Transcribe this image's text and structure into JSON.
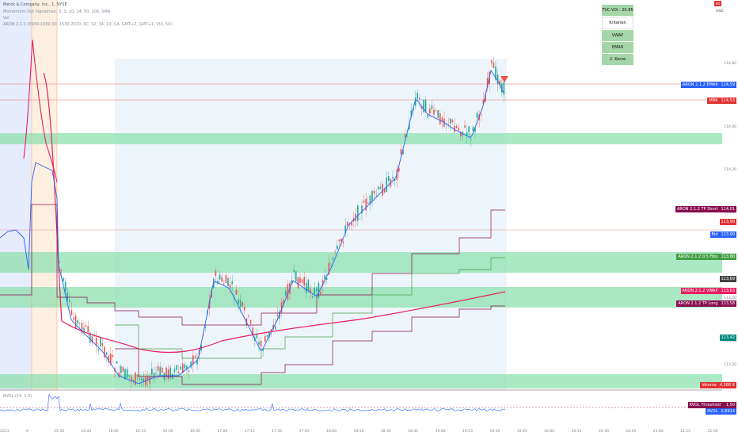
{
  "header": {
    "symbol_line": "Merck & Company, Inc., 1, NYSE",
    "line2": "Momentum Dot Signalman, 3, 3, 10, 14, 50, 100, SMA",
    "line3": "Vol",
    "line4": "ARON 2.1.1 (0930-1000 30, 1530-2020, 0C, 12, 14, 10, CA, GMT+2, GMT+1, VIX, 50)",
    "currency": "USD",
    "alert_label": "Alt"
  },
  "criteria_table": {
    "rows": [
      {
        "label": "TVC:VIX : 20.85",
        "color": "#a5d6a7"
      },
      {
        "label": "Kriterien",
        "color": "#ffffff"
      },
      {
        "label": "VWAP",
        "color": "#a5d6a7"
      },
      {
        "label": "EMA9",
        "color": "#a5d6a7"
      },
      {
        "label": "2. Kerze",
        "color": "#a5d6a7"
      }
    ]
  },
  "price_axis": {
    "ticks": [
      "114,80",
      "114,60",
      "114,40",
      "114,20",
      "114,00",
      "113,80",
      "113,60",
      "113,40",
      "113,20",
      "113,00"
    ]
  },
  "time_axis": {
    "ticks": [
      "15:30",
      "15:45",
      "16:00",
      "16:15",
      "16:30",
      "16:45",
      "17:00",
      "17:15",
      "17:30",
      "17:45",
      "18:00",
      "18:15",
      "18:30",
      "18:45",
      "19:00",
      "19:15",
      "19:30",
      "19:45",
      "20:00",
      "20:15",
      "20:30",
      "20:45",
      "21:00",
      "21:15",
      "21:30"
    ],
    "first_label": "9",
    "left_edge_label": "2023"
  },
  "right_tags": [
    {
      "name": "ARON 2.1.2 EMA9",
      "value": "114,59",
      "name_color": "#2962ff",
      "value_color": "#2962ff"
    },
    {
      "name": "MRK",
      "value": "114,53",
      "name_color": "#e03131",
      "value_color": "#e03131"
    },
    {
      "name": "ARON 2.1.2 TP Short",
      "value": "114,01",
      "name_color": "#880e4f",
      "value_color": "#880e4f"
    },
    {
      "name": "",
      "value": "113,98",
      "name_color": "#e03131",
      "value_color": "#e03131"
    },
    {
      "name": "Bid",
      "value": "113,90",
      "name_color": "#2962ff",
      "value_color": "#2962ff"
    },
    {
      "name": "ARON 2.1.2 0.5 Fibo",
      "value": "113,80",
      "name_color": "#43a047",
      "value_color": "#43a047"
    },
    {
      "name": "",
      "value": "113,69",
      "name_color": "#424242",
      "value_color": "#424242"
    },
    {
      "name": "ARON 2.1.2 VWAP",
      "value": "113,63",
      "name_color": "#e91e63",
      "value_color": "#e91e63"
    },
    {
      "name": "ARON 2.1.2 TP Long",
      "value": "113,58",
      "name_color": "#880e4f",
      "value_color": "#880e4f"
    },
    {
      "name": "",
      "value": "113,42",
      "name_color": "#00897b",
      "value_color": "#00897b"
    },
    {
      "name": "Volume",
      "value": "4,586 K",
      "name_color": "#e03131",
      "value_color": "#e03131"
    },
    {
      "name": "RVOL Threshold",
      "value": "1,50",
      "name_color": "#880e4f",
      "value_color": "#880e4f"
    },
    {
      "name": "RVOL",
      "value": "0,8914",
      "name_color": "#2962ff",
      "value_color": "#2962ff"
    }
  ],
  "indicator_pane": {
    "label": "RVOL (14, 1,5)"
  },
  "colors": {
    "up": "#26a69a",
    "down": "#ef5350",
    "ema": "#2962ff",
    "vwap": "#e91e63",
    "zone": "#8fe0b0",
    "session_bg": "#eef5fa"
  },
  "chart_data": {
    "type": "candlestick",
    "symbol": "MRK",
    "interval": "1",
    "series": [
      {
        "name": "ARON 2.1.2 EMA9",
        "last": 114.59
      },
      {
        "name": "ARON 2.1.2 VWAP",
        "last": 113.63
      },
      {
        "name": "ARON 2.1.2 TP Short",
        "last": 114.01
      },
      {
        "name": "ARON 2.1.2 TP Long",
        "last": 113.58
      },
      {
        "name": "ARON 2.1.2 0.5 Fibo",
        "last": 113.8
      }
    ],
    "last_price": 114.53,
    "ylim": [
      112.95,
      114.9
    ]
  }
}
